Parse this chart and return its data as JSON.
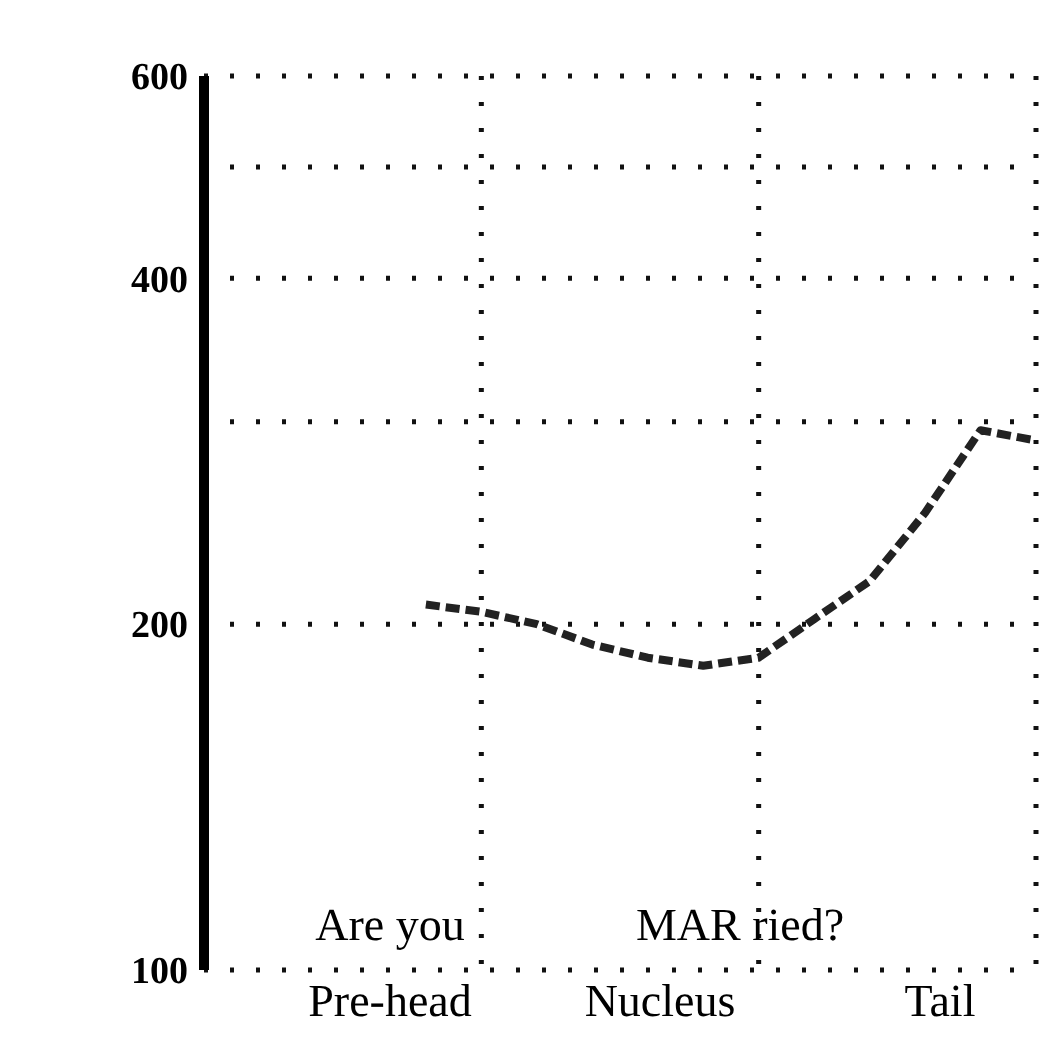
{
  "chart_data": {
    "type": "line",
    "categories": [
      null,
      null,
      null,
      null,
      null,
      null,
      null,
      null,
      null,
      null,
      null,
      null,
      null,
      null,
      null,
      null
    ],
    "values": [
      null,
      null,
      null,
      null,
      208,
      205,
      200,
      192,
      187,
      184,
      187,
      202,
      218,
      250,
      295,
      289
    ],
    "color": "#222222",
    "line_style": "dashed",
    "log": true,
    "ylim": [
      100,
      600
    ],
    "yticks": [
      100,
      200,
      {
        "value": 300,
        "label": null
      },
      400,
      {
        "value": 500,
        "label": null
      },
      600
    ],
    "grid": "y",
    "annotations": [
      "Are you",
      "MAR ried?",
      "Pre-head",
      "Nucleus",
      "Tail"
    ]
  }
}
